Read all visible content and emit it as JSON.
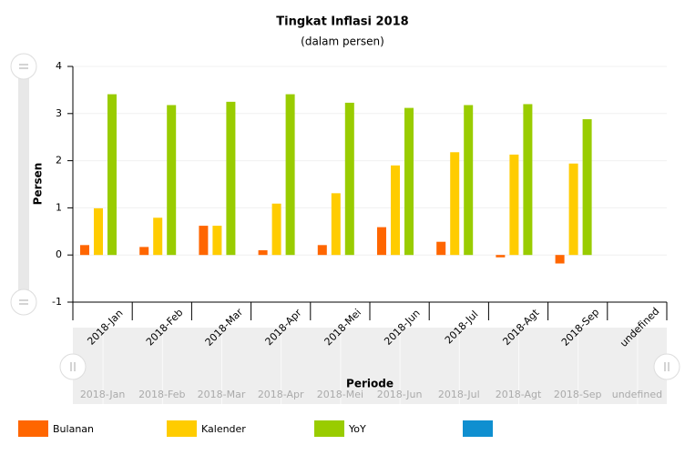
{
  "chart_data": {
    "type": "bar",
    "title": "Tingkat Inflasi 2018",
    "subtitle": "(dalam persen)",
    "x_label": "Periode",
    "y_label": "Persen",
    "categories": [
      "2018-Jan",
      "2018-Feb",
      "2018-Mar",
      "2018-Apr",
      "2018-Mei",
      "2018-Jun",
      "2018-Jul",
      "2018-Agt",
      "2018-Sep",
      "undefined"
    ],
    "series": [
      {
        "name": "Bulanan",
        "color": "#ff6600",
        "values": [
          0.21,
          0.17,
          0.62,
          0.1,
          0.21,
          0.59,
          0.28,
          -0.05,
          -0.18,
          null
        ]
      },
      {
        "name": "Kalender",
        "color": "#ffcc00",
        "values": [
          0.99,
          0.79,
          0.62,
          1.09,
          1.31,
          1.9,
          2.18,
          2.13,
          1.94,
          null
        ]
      },
      {
        "name": "YoY",
        "color": "#99cc00",
        "values": [
          3.41,
          3.18,
          3.25,
          3.41,
          3.23,
          3.12,
          3.18,
          3.2,
          2.88,
          null
        ]
      },
      {
        "color": "#0f8fd0",
        "values": [
          null,
          null,
          null,
          null,
          null,
          null,
          null,
          null,
          null,
          null
        ]
      }
    ],
    "ylim": [
      -1,
      4
    ],
    "yticks": [
      -1,
      0,
      1,
      2,
      3,
      4
    ],
    "grid": true,
    "legend": "bottom"
  }
}
